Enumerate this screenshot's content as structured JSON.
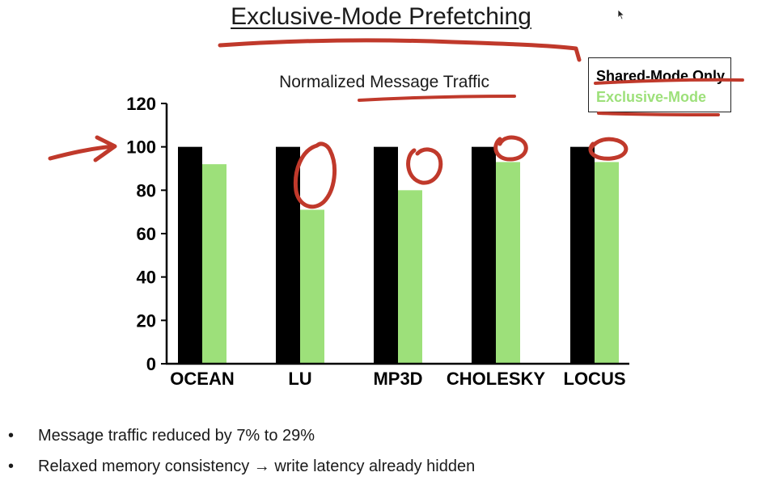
{
  "slide": {
    "title": "Exclusive-Mode Prefetching",
    "bullets": [
      "Message traffic reduced by 7% to 29%",
      "Relaxed memory consistency → write latency already hidden"
    ]
  },
  "chart_data": {
    "type": "bar",
    "title": "Normalized Message Traffic",
    "xlabel": "",
    "ylabel": "",
    "categories": [
      "OCEAN",
      "LU",
      "MP3D",
      "CHOLESKY",
      "LOCUS"
    ],
    "series": [
      {
        "name": "Shared-Mode Only",
        "color": "#000000",
        "values": [
          100,
          100,
          100,
          100,
          100
        ]
      },
      {
        "name": "Exclusive-Mode",
        "color": "#9de07a",
        "values": [
          92,
          71,
          80,
          93,
          93
        ]
      }
    ],
    "ylim": [
      0,
      120
    ],
    "yticks": [
      0,
      20,
      40,
      60,
      80,
      100,
      120
    ],
    "grid": false,
    "legend_position": "top-right"
  },
  "annotations": {
    "ink_color": "#c0392b"
  }
}
